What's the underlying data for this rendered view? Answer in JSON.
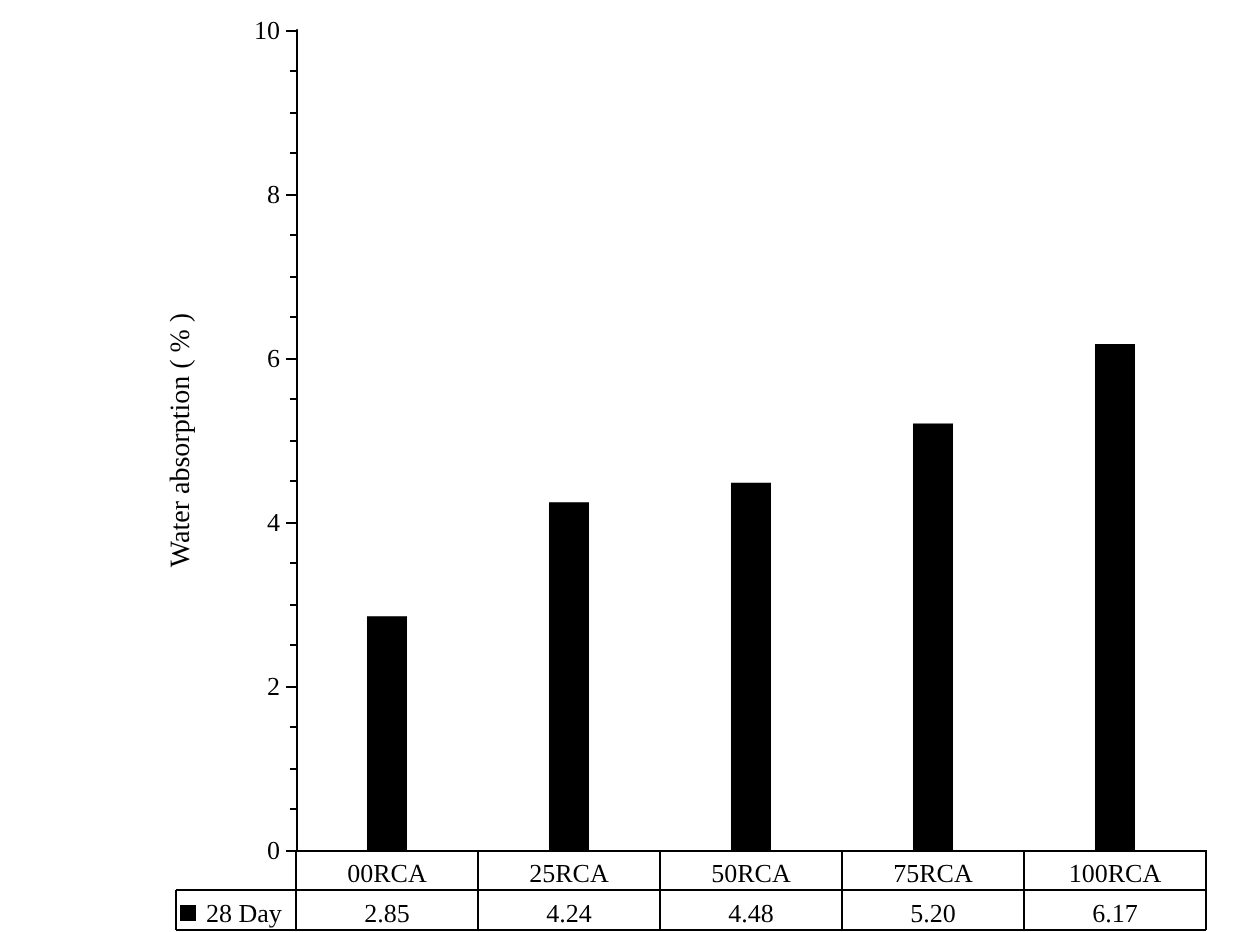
{
  "chart_data": {
    "type": "bar",
    "ylabel": "Water absorption ( % )",
    "categories": [
      "00RCA",
      "25RCA",
      "50RCA",
      "75RCA",
      "100RCA"
    ],
    "series": [
      {
        "name": "28 Day",
        "color": "#000000",
        "values": [
          2.85,
          4.24,
          4.48,
          5.2,
          6.17
        ],
        "value_labels": [
          "2.85",
          "4.24",
          "4.48",
          "5.20",
          "6.17"
        ]
      }
    ],
    "ylim": [
      0,
      10
    ],
    "yticks": [
      0,
      2,
      4,
      6,
      8,
      10
    ],
    "grid": false,
    "legend": "bottom left"
  }
}
